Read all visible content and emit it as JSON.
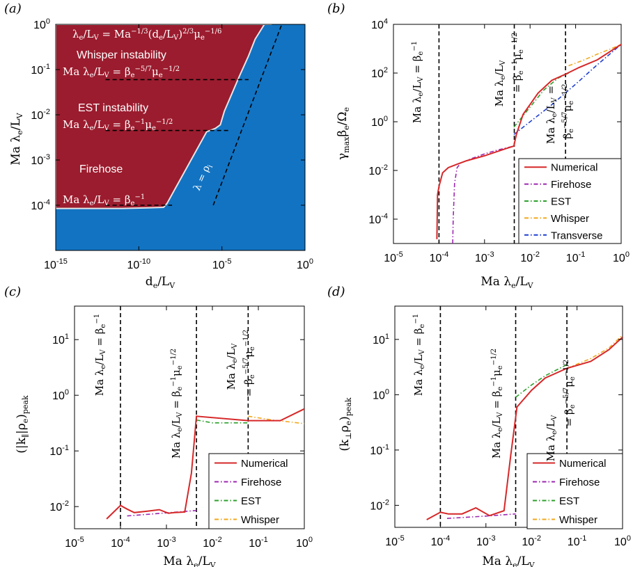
{
  "colors": {
    "firehose_region": "#9b1c2e",
    "stable_region": "#1273c2",
    "region_boundary": "#e6e6e6",
    "numerical": "#d62728",
    "firehose": "#9c27b0",
    "est": "#2ca02c",
    "whisper": "#f2a81d",
    "transverse": "#1f3fd0",
    "threshold": "#000000"
  },
  "chart_data": [
    {
      "id": "a",
      "panel_label": "(a)",
      "type": "heatmap",
      "xlabel": "d_e / L_V",
      "ylabel": "Ma λ_e / L_V",
      "xscale": "log",
      "yscale": "log",
      "xlim": [
        1e-15,
        1
      ],
      "ylim": [
        1e-05,
        1
      ],
      "xticks": [
        "10-15",
        "10-10",
        "10-5",
        "100"
      ],
      "yticks": [
        "10-4",
        "10-3",
        "10-2",
        "10-1",
        "100"
      ],
      "unstable_boundary": {
        "x": [
          1e-15,
          1e-11,
          5e-10,
          3.1e-09,
          5e-09,
          1.2e-06,
          4e-06,
          8e-06,
          1.4e-05,
          0.00011,
          0.0004,
          0.001,
          0.0036,
          0.01
        ],
        "y": [
          8.5e-05,
          8.5e-05,
          8.8e-05,
          9e-05,
          0.00011,
          0.0042,
          0.005,
          0.006,
          0.012,
          0.07,
          0.2,
          0.47,
          1,
          1
        ]
      },
      "thresholds": [
        {
          "y": 0.0001,
          "x": [
            1e-12,
            1e-08
          ],
          "label": "Ma λe/LV = βe^-1"
        },
        {
          "y": 0.0045,
          "x": [
            1e-12,
            3e-05
          ],
          "label": "Ma λe/LV = βe^-1 μe^-1/2"
        },
        {
          "y": 0.06,
          "x": [
            1e-12,
            0.0004
          ],
          "label": "Ma λe/LV = βe^-5/7 μe^-1/2"
        },
        {
          "y": null,
          "x": null,
          "label": "Ma λe/LV = Ma^-1/3 (de/LV)^2/3 μe^-1/6",
          "line": {
            "x": [
              3e-06,
              0.04
            ],
            "y": [
              0.0001,
              1
            ]
          }
        }
      ],
      "line_label": "λ = ρi",
      "regions": [
        "Whisper instability",
        "EST instability",
        "Firehose"
      ]
    },
    {
      "id": "b",
      "panel_label": "(b)",
      "type": "line",
      "xlabel": "Ma λ_e / L_V",
      "ylabel": "γ_max β_e / Ω_e",
      "xscale": "log",
      "yscale": "log",
      "xlim": [
        1e-05,
        1
      ],
      "ylim": [
        1e-05,
        10000.0
      ],
      "xticks": [
        "10-5",
        "10-4",
        "10-3",
        "10-2",
        "10-1",
        "100"
      ],
      "yticks": [
        "10-4",
        "10-2",
        "100",
        "102",
        "104"
      ],
      "vlines": [
        {
          "x": 0.0001,
          "label": "Ma λe/LV = βe^-1"
        },
        {
          "x": 0.0045,
          "label": "Ma λe/LV",
          "label2": "= βe^-1 μe^-1/2"
        },
        {
          "x": 0.06,
          "label": "Ma λe/LV =",
          "label2": "βe^-5/7 μe^-1/2"
        }
      ],
      "series": [
        {
          "name": "Numerical",
          "key": "numerical",
          "x": [
            9e-05,
            9.3e-05,
            0.0001,
            0.00012,
            0.00016,
            0.00025,
            0.0004,
            0.001,
            0.003,
            0.0044,
            0.005,
            0.007,
            0.015,
            0.03,
            0.06,
            0.12,
            0.3,
            1
          ],
          "y": [
            1.5e-05,
            0.001,
            0.0022,
            0.008,
            0.013,
            0.018,
            0.025,
            0.04,
            0.08,
            0.1,
            0.3,
            2,
            15,
            50,
            90,
            170,
            350,
            1500
          ]
        },
        {
          "name": "Firehose",
          "key": "firehose",
          "x": [
            0.0002,
            0.000205,
            0.00022,
            0.00025,
            0.0003,
            0.0005,
            0.001,
            0.002,
            0.0044
          ],
          "y": [
            1e-05,
            0.0001,
            0.003,
            0.013,
            0.02,
            0.03,
            0.048,
            0.07,
            0.1
          ]
        },
        {
          "name": "EST",
          "key": "est",
          "x": [
            0.0044,
            0.01,
            0.02,
            0.04,
            0.07
          ],
          "y": [
            0.6,
            4,
            20,
            60,
            100
          ]
        },
        {
          "name": "Whisper",
          "key": "whisper",
          "x": [
            0.07,
            0.15,
            0.3,
            0.6,
            1
          ],
          "y": [
            200,
            340,
            600,
            1000,
            1500
          ]
        },
        {
          "name": "Transverse",
          "key": "transverse",
          "x": [
            0.0044,
            0.01,
            0.03,
            0.1,
            0.3,
            1
          ],
          "y": [
            0.3,
            1,
            5,
            35,
            220,
            1500
          ]
        }
      ]
    },
    {
      "id": "c",
      "panel_label": "(c)",
      "type": "line",
      "xlabel": "Ma λ_e / L_V",
      "ylabel": "(|k_∥| ρ_e)_peak",
      "xscale": "log",
      "yscale": "log",
      "xlim": [
        1e-05,
        1
      ],
      "ylim": [
        0.004,
        40
      ],
      "xticks": [
        "10-5",
        "10-4",
        "10-3",
        "10-2",
        "10-1",
        "100"
      ],
      "yticks": [
        "10-2",
        "10-1",
        "100",
        "101"
      ],
      "vlines": [
        {
          "x": 0.0001,
          "label": "Ma λe/LV = βe^-1"
        },
        {
          "x": 0.0045,
          "label": "Ma λe/LV = βe^-1 μe^-1/2"
        },
        {
          "x": 0.06,
          "label": "Ma λe/LV",
          "label2": "= βe^-5/7 μe^-1/2"
        }
      ],
      "series": [
        {
          "name": "Numerical",
          "key": "numerical",
          "x": [
            5e-05,
            0.0001,
            0.00014,
            0.0002,
            0.0004,
            0.0007,
            0.0011,
            0.0015,
            0.0025,
            0.0035,
            0.0045,
            0.06,
            0.3,
            1
          ],
          "y": [
            0.006,
            0.0105,
            0.009,
            0.0078,
            0.0083,
            0.0088,
            0.0076,
            0.0078,
            0.008,
            0.04,
            0.42,
            0.35,
            0.35,
            0.57
          ]
        },
        {
          "name": "Firehose",
          "key": "firehose",
          "x": [
            0.00014,
            0.001,
            0.0045
          ],
          "y": [
            0.0068,
            0.0077,
            0.0085
          ]
        },
        {
          "name": "EST",
          "key": "est",
          "x": [
            0.0045,
            0.01,
            0.06
          ],
          "y": [
            0.36,
            0.32,
            0.32
          ]
        },
        {
          "name": "Whisper",
          "key": "whisper",
          "x": [
            0.06,
            0.2,
            1
          ],
          "y": [
            0.42,
            0.36,
            0.31
          ]
        }
      ]
    },
    {
      "id": "d",
      "panel_label": "(d)",
      "type": "line",
      "xlabel": "Ma λ_e / L_V",
      "ylabel": "(k_⊥ ρ_e)_peak",
      "xscale": "log",
      "yscale": "log",
      "xlim": [
        1e-05,
        1
      ],
      "ylim": [
        0.004,
        40
      ],
      "xticks": [
        "10-5",
        "10-4",
        "10-3",
        "10-2",
        "10-1",
        "100"
      ],
      "yticks": [
        "10-2",
        "10-1",
        "100",
        "101"
      ],
      "vlines": [
        {
          "x": 0.0001,
          "label": "Ma λe/LV = βe^-1"
        },
        {
          "x": 0.0045,
          "label": "Ma λe/LV = βe^-1 μe^-1/2"
        },
        {
          "x": 0.06,
          "label": "Ma λe/LV",
          "label2": "= βe^-5/7 μe^-1/2"
        }
      ],
      "series": [
        {
          "name": "Numerical",
          "key": "numerical",
          "x": [
            5e-05,
            0.0001,
            0.00015,
            0.0003,
            0.0006,
            0.0012,
            0.0025,
            0.0035,
            0.0048,
            0.01,
            0.02,
            0.06,
            0.2,
            0.5,
            1
          ],
          "y": [
            0.0055,
            0.0075,
            0.007,
            0.007,
            0.009,
            0.0065,
            0.008,
            0.08,
            0.6,
            1.2,
            2,
            3,
            4,
            6.5,
            11
          ]
        },
        {
          "name": "Firehose",
          "key": "firehose",
          "x": [
            0.00014,
            0.001,
            0.0045
          ],
          "y": [
            0.0058,
            0.0064,
            0.007
          ]
        },
        {
          "name": "EST",
          "key": "est",
          "x": [
            0.0045,
            0.01,
            0.02,
            0.06
          ],
          "y": [
            0.9,
            1.5,
            2.2,
            3.5
          ]
        },
        {
          "name": "Whisper",
          "key": "whisper",
          "x": [
            0.06,
            0.2,
            0.5,
            1
          ],
          "y": [
            3,
            4.5,
            7,
            12
          ]
        }
      ]
    }
  ]
}
